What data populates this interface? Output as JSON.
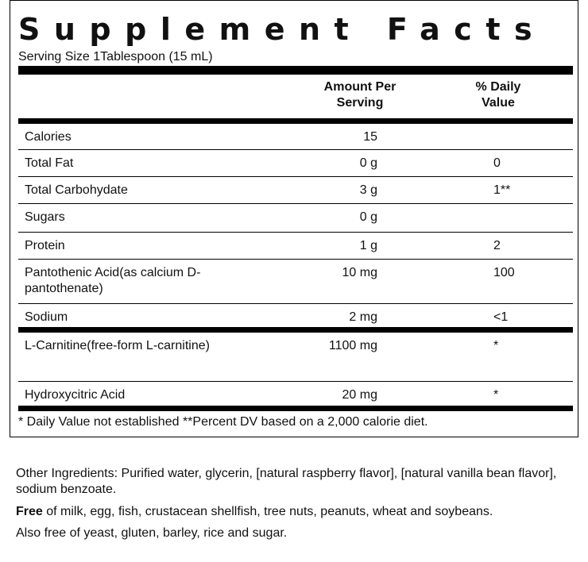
{
  "title": "Supplement Facts",
  "serving_size": "Serving Size 1Tablespoon (15 mL)",
  "columns": {
    "amount": "Amount Per Serving",
    "daily_value": "% Daily Value"
  },
  "rows": [
    {
      "name": "Calories",
      "amount": "15",
      "daily_value": null
    },
    {
      "name": "Total Fat",
      "amount": "0 g",
      "daily_value": "0"
    },
    {
      "name": "Total Carbohydate",
      "amount": "3 g",
      "daily_value": "1**"
    },
    {
      "name": "Sugars",
      "amount": "0 g",
      "daily_value": null
    },
    {
      "name": "Protein",
      "amount": "1 g",
      "daily_value": "2"
    },
    {
      "name": "Pantothenic Acid(as calcium D-pantothenate)",
      "amount": "10 mg",
      "daily_value": "100"
    },
    {
      "name": "Sodium",
      "amount": "2 mg",
      "daily_value": "<1"
    },
    {
      "name": "L-Carnitine(free-form L-carnitine)",
      "amount": "1100 mg",
      "daily_value": "*"
    },
    {
      "name": "Hydroxycitric Acid",
      "amount": "20 mg",
      "daily_value": "*"
    }
  ],
  "footnote": "* Daily Value not established **Percent DV based on a 2,000 calorie diet.",
  "other_ingredients": "Other Ingredients: Purified water, glycerin, [natural raspberry flavor], [natural vanilla bean flavor], sodium benzoate.",
  "free_of": {
    "bold": "Free",
    "text": " of milk, egg, fish, crustacean shellfish, tree nuts, peanuts, wheat and soybeans."
  },
  "also_free": "Also free of yeast, gluten, barley, rice and sugar."
}
